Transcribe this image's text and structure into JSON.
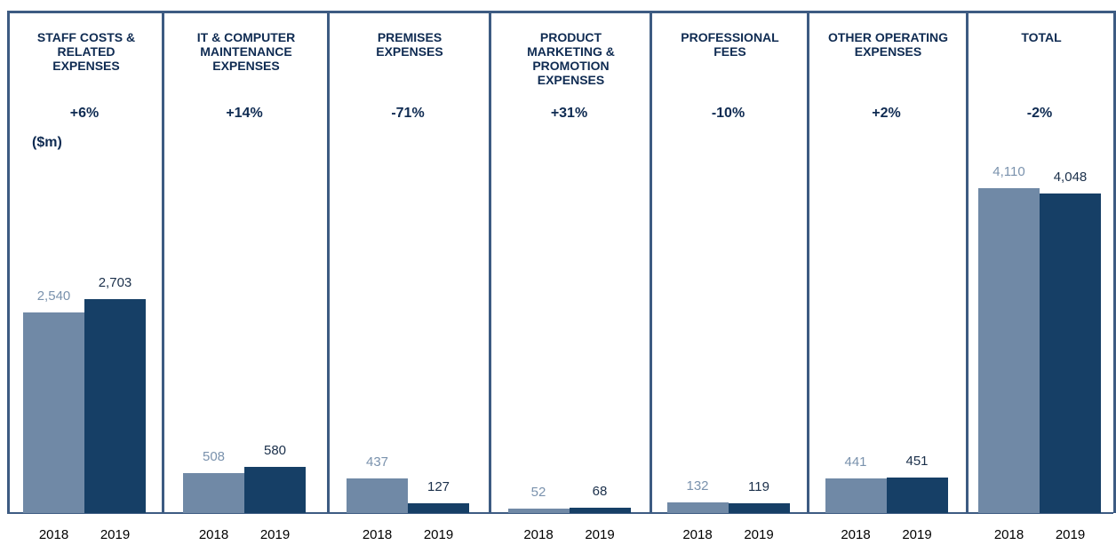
{
  "chart_data": {
    "type": "bar",
    "unit_label": "($m)",
    "categories": [
      "STAFF COSTS & RELATED EXPENSES",
      "IT & COMPUTER MAINTENANCE EXPENSES",
      "PREMISES EXPENSES",
      "PRODUCT MARKETING & PROMOTION EXPENSES",
      "PROFESSIONAL FEES",
      "OTHER OPERATING EXPENSES",
      "TOTAL"
    ],
    "changes": [
      "+6%",
      "+14%",
      "-71%",
      "+31%",
      "-10%",
      "+2%",
      "-2%"
    ],
    "series": [
      {
        "name": "2018",
        "color": "#7089a6",
        "label_color": "#7a92ad",
        "values": [
          2540,
          508,
          437,
          52,
          132,
          441,
          4110
        ],
        "value_labels": [
          "2,540",
          "508",
          "437",
          "52",
          "132",
          "441",
          "4,110"
        ]
      },
      {
        "name": "2019",
        "color": "#163f66",
        "label_color": "#1a2f4a",
        "values": [
          2703,
          580,
          127,
          68,
          119,
          451,
          4048
        ],
        "value_labels": [
          "2,703",
          "580",
          "127",
          "68",
          "119",
          "451",
          "4,048"
        ]
      }
    ]
  }
}
